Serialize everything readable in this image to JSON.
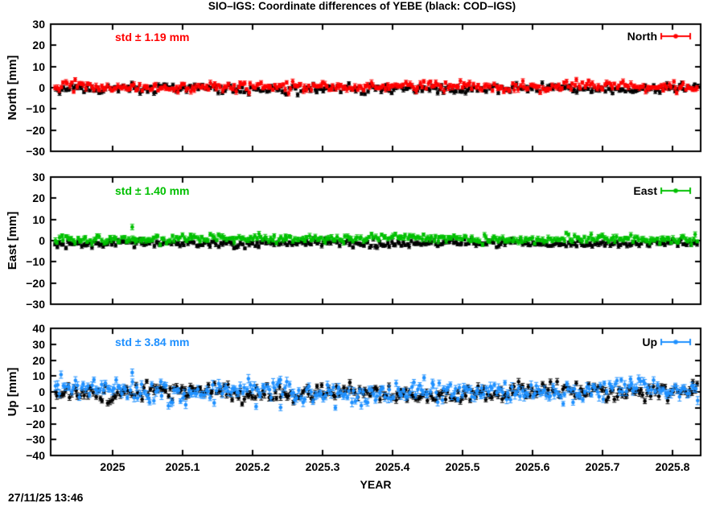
{
  "chart_data": {
    "type": "scatter",
    "title": "SIO–IGS: Coordinate differences of YEBE (black: COD–IGS)",
    "xlabel": "YEAR",
    "timestamp": "27/11/25 13:46",
    "grid": false,
    "legend_position": "top-right-inside",
    "x_range": [
      2024.9115,
      2025.8402
    ],
    "points_x_span": [
      2024.917,
      2025.837
    ],
    "x_ticks": [
      2025,
      2025.1,
      2025.2,
      2025.3,
      2025.4,
      2025.5,
      2025.6,
      2025.7,
      2025.8
    ],
    "x_tick_labels": [
      "2025",
      "2025.1",
      "2025.2",
      "2025.3",
      "2025.4",
      "2025.5",
      "2025.6",
      "2025.7",
      "2025.8"
    ],
    "panels": [
      {
        "key": "north",
        "legend_label": "North",
        "ylabel": "North [mm]",
        "ylim": [
          -30,
          30
        ],
        "y_ticks": [
          30,
          20,
          10,
          0,
          -10,
          -20,
          -30
        ],
        "std_label": "std ± 1.19 mm",
        "std_mm": 1.19,
        "accent_color": "#ff0000",
        "series": [
          {
            "name": "SIO-IGS",
            "color": "#ff0000",
            "n": 320,
            "mean": 0.5,
            "std": 1.19,
            "wander": 0.35,
            "phase": 1.3,
            "err_base": 0.7,
            "err_var": 0.6,
            "seed": 101,
            "outliers": []
          },
          {
            "name": "COD-IGS",
            "color": "#000000",
            "n": 320,
            "mean": -0.5,
            "std": 1.05,
            "wander": 0.3,
            "phase": 4.0,
            "err_base": 0.6,
            "err_var": 0.5,
            "seed": 102,
            "outliers": []
          }
        ]
      },
      {
        "key": "east",
        "legend_label": "East",
        "ylabel": "East [mm]",
        "ylim": [
          -30,
          30
        ],
        "y_ticks": [
          30,
          20,
          10,
          0,
          -10,
          -20,
          -30
        ],
        "std_label": "std ± 1.40 mm",
        "std_mm": 1.4,
        "accent_color": "#00c000",
        "series": [
          {
            "name": "SIO-IGS",
            "color": "#00c000",
            "n": 320,
            "mean": 0.9,
            "std": 1.0,
            "wander": 0.4,
            "phase": 2.1,
            "err_base": 0.7,
            "err_var": 0.6,
            "seed": 201,
            "outliers": [
              {
                "x": 2025.028,
                "y": 6.4,
                "err": 1.3
              }
            ]
          },
          {
            "name": "COD-IGS",
            "color": "#000000",
            "n": 320,
            "mean": -1.3,
            "std": 0.85,
            "wander": 0.3,
            "phase": 5.2,
            "err_base": 0.6,
            "err_var": 0.5,
            "seed": 202,
            "outliers": []
          }
        ]
      },
      {
        "key": "up",
        "legend_label": "Up",
        "ylabel": "Up [mm]",
        "ylim": [
          -40,
          40
        ],
        "y_ticks": [
          40,
          30,
          20,
          10,
          0,
          -10,
          -20,
          -30,
          -40
        ],
        "std_label": "std ± 3.84 mm",
        "std_mm": 3.84,
        "accent_color": "#1e90ff",
        "series": [
          {
            "name": "SIO-IGS",
            "color": "#1e90ff",
            "n": 320,
            "mean": 0.4,
            "std": 3.3,
            "wander": 1.6,
            "phase": 0.7,
            "err_base": 1.4,
            "err_var": 1.4,
            "seed": 301,
            "outliers": [
              {
                "x": 2025.028,
                "y": 12.2,
                "err": 2.2
              },
              {
                "x": 2025.24,
                "y": -9.8,
                "err": 2.0
              },
              {
                "x": 2025.205,
                "y": -9.2,
                "err": 1.8
              },
              {
                "x": 2025.445,
                "y": 8.9,
                "err": 1.8
              },
              {
                "x": 2025.74,
                "y": 8.1,
                "err": 1.8
              }
            ]
          },
          {
            "name": "COD-IGS",
            "color": "#000000",
            "n": 320,
            "mean": -0.4,
            "std": 2.6,
            "wander": 1.2,
            "phase": 3.6,
            "err_base": 1.2,
            "err_var": 1.0,
            "seed": 302,
            "outliers": []
          }
        ]
      }
    ]
  }
}
